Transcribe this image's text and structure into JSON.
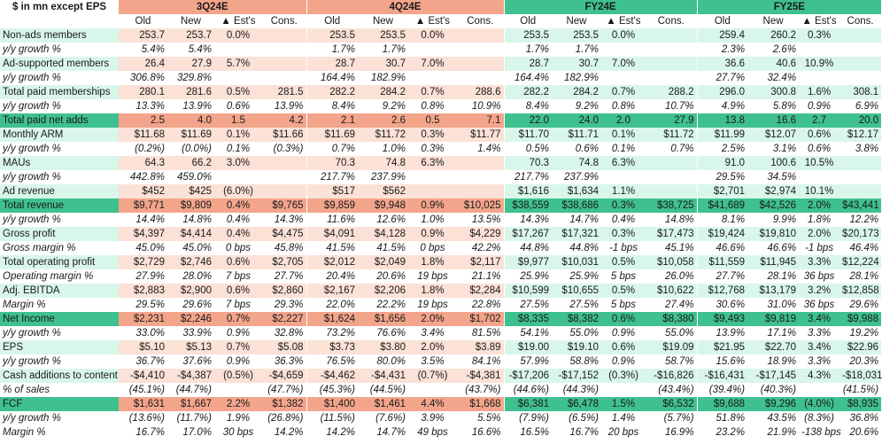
{
  "header": {
    "label": "$ in mn except EPS",
    "groups": [
      "3Q24E",
      "4Q24E",
      "FY24E",
      "FY25E"
    ],
    "subheaders": [
      "Old",
      "New",
      "▲ Est's",
      "Cons."
    ]
  },
  "rows": [
    {
      "label": "Non-ads members",
      "style": "light",
      "italic": false,
      "cells": [
        "253.7",
        "253.7",
        "0.0%",
        "",
        "253.5",
        "253.5",
        "0.0%",
        "",
        "253.5",
        "253.5",
        "0.0%",
        "",
        "259.4",
        "260.2",
        "0.3%",
        ""
      ]
    },
    {
      "label": "y/y growth %",
      "style": "white",
      "italic": true,
      "cells": [
        "5.4%",
        "5.4%",
        "",
        "",
        "1.7%",
        "1.7%",
        "",
        "",
        "1.7%",
        "1.7%",
        "",
        "",
        "2.3%",
        "2.6%",
        "",
        ""
      ]
    },
    {
      "label": "Ad-supported members",
      "style": "light",
      "italic": false,
      "cells": [
        "26.4",
        "27.9",
        "5.7%",
        "",
        "28.7",
        "30.7",
        "7.0%",
        "",
        "28.7",
        "30.7",
        "7.0%",
        "",
        "36.6",
        "40.6",
        "10.9%",
        ""
      ]
    },
    {
      "label": "y/y growth %",
      "style": "white",
      "italic": true,
      "cells": [
        "306.8%",
        "329.8%",
        "",
        "",
        "164.4%",
        "182.9%",
        "",
        "",
        "164.4%",
        "182.9%",
        "",
        "",
        "27.7%",
        "32.4%",
        "",
        ""
      ]
    },
    {
      "label": "Total paid memberships",
      "style": "light",
      "italic": false,
      "cells": [
        "280.1",
        "281.6",
        "0.5%",
        "281.5",
        "282.2",
        "284.2",
        "0.7%",
        "288.6",
        "282.2",
        "284.2",
        "0.7%",
        "288.2",
        "296.0",
        "300.8",
        "1.6%",
        "308.1"
      ]
    },
    {
      "label": "y/y growth %",
      "style": "white",
      "italic": true,
      "cells": [
        "13.3%",
        "13.9%",
        "0.6%",
        "13.9%",
        "8.4%",
        "9.2%",
        "0.8%",
        "10.9%",
        "8.4%",
        "9.2%",
        "0.8%",
        "10.7%",
        "4.9%",
        "5.8%",
        "0.9%",
        "6.9%"
      ]
    },
    {
      "label": "Total paid net adds",
      "style": "dark",
      "italic": false,
      "cells": [
        "2.5",
        "4.0",
        "1.5",
        "4.2",
        "2.1",
        "2.6",
        "0.5",
        "7.1",
        "22.0",
        "24.0",
        "2.0",
        "27.9",
        "13.8",
        "16.6",
        "2.7",
        "20.0"
      ]
    },
    {
      "label": "Monthly ARM",
      "style": "light",
      "italic": false,
      "cells": [
        "$11.68",
        "$11.69",
        "0.1%",
        "$11.66",
        "$11.69",
        "$11.72",
        "0.3%",
        "$11.77",
        "$11.70",
        "$11.71",
        "0.1%",
        "$11.72",
        "$11.99",
        "$12.07",
        "0.6%",
        "$12.17"
      ]
    },
    {
      "label": "y/y growth %",
      "style": "white",
      "italic": true,
      "cells": [
        "(0.2%)",
        "(0.0%)",
        "0.1%",
        "(0.3%)",
        "0.7%",
        "1.0%",
        "0.3%",
        "1.4%",
        "0.5%",
        "0.6%",
        "0.1%",
        "0.7%",
        "2.5%",
        "3.1%",
        "0.6%",
        "3.8%"
      ]
    },
    {
      "label": "MAUs",
      "style": "light",
      "italic": false,
      "cells": [
        "64.3",
        "66.2",
        "3.0%",
        "",
        "70.3",
        "74.8",
        "6.3%",
        "",
        "70.3",
        "74.8",
        "6.3%",
        "",
        "91.0",
        "100.6",
        "10.5%",
        ""
      ]
    },
    {
      "label": "y/y growth %",
      "style": "white",
      "italic": true,
      "cells": [
        "442.8%",
        "459.0%",
        "",
        "",
        "217.7%",
        "237.9%",
        "",
        "",
        "217.7%",
        "237.9%",
        "",
        "",
        "29.5%",
        "34.5%",
        "",
        ""
      ]
    },
    {
      "label": "Ad revenue",
      "style": "light",
      "italic": false,
      "cells": [
        "$452",
        "$425",
        "(6.0%)",
        "",
        "$517",
        "$562",
        "",
        "",
        "$1,616",
        "$1,634",
        "1.1%",
        "",
        "$2,701",
        "$2,974",
        "10.1%",
        ""
      ]
    },
    {
      "label": "Total revenue",
      "style": "dark",
      "italic": false,
      "cells": [
        "$9,771",
        "$9,809",
        "0.4%",
        "$9,765",
        "$9,859",
        "$9,948",
        "0.9%",
        "$10,025",
        "$38,559",
        "$38,686",
        "0.3%",
        "$38,725",
        "$41,689",
        "$42,526",
        "2.0%",
        "$43,441"
      ]
    },
    {
      "label": "y/y growth %",
      "style": "white",
      "italic": true,
      "cells": [
        "14.4%",
        "14.8%",
        "0.4%",
        "14.3%",
        "11.6%",
        "12.6%",
        "1.0%",
        "13.5%",
        "14.3%",
        "14.7%",
        "0.4%",
        "14.8%",
        "8.1%",
        "9.9%",
        "1.8%",
        "12.2%"
      ]
    },
    {
      "label": "Gross profit",
      "style": "light",
      "italic": false,
      "cells": [
        "$4,397",
        "$4,414",
        "0.4%",
        "$4,475",
        "$4,091",
        "$4,128",
        "0.9%",
        "$4,229",
        "$17,267",
        "$17,321",
        "0.3%",
        "$17,473",
        "$19,424",
        "$19,810",
        "2.0%",
        "$20,173"
      ]
    },
    {
      "label": "Gross margin %",
      "style": "white",
      "italic": true,
      "cells": [
        "45.0%",
        "45.0%",
        "0 bps",
        "45.8%",
        "41.5%",
        "41.5%",
        "0 bps",
        "42.2%",
        "44.8%",
        "44.8%",
        "-1 bps",
        "45.1%",
        "46.6%",
        "46.6%",
        "-1 bps",
        "46.4%"
      ]
    },
    {
      "label": "Total operating profit",
      "style": "light",
      "italic": false,
      "cells": [
        "$2,729",
        "$2,746",
        "0.6%",
        "$2,705",
        "$2,012",
        "$2,049",
        "1.8%",
        "$2,117",
        "$9,977",
        "$10,031",
        "0.5%",
        "$10,058",
        "$11,559",
        "$11,945",
        "3.3%",
        "$12,224"
      ]
    },
    {
      "label": "Operating margin %",
      "style": "white",
      "italic": true,
      "cells": [
        "27.9%",
        "28.0%",
        "7 bps",
        "27.7%",
        "20.4%",
        "20.6%",
        "19 bps",
        "21.1%",
        "25.9%",
        "25.9%",
        "5 bps",
        "26.0%",
        "27.7%",
        "28.1%",
        "36 bps",
        "28.1%"
      ]
    },
    {
      "label": "Adj. EBITDA",
      "style": "light",
      "italic": false,
      "cells": [
        "$2,883",
        "$2,900",
        "0.6%",
        "$2,860",
        "$2,167",
        "$2,206",
        "1.8%",
        "$2,284",
        "$10,599",
        "$10,655",
        "0.5%",
        "$10,622",
        "$12,768",
        "$13,179",
        "3.2%",
        "$12,858"
      ]
    },
    {
      "label": "Margin %",
      "style": "white",
      "italic": true,
      "cells": [
        "29.5%",
        "29.6%",
        "7 bps",
        "29.3%",
        "22.0%",
        "22.2%",
        "19 bps",
        "22.8%",
        "27.5%",
        "27.5%",
        "5 bps",
        "27.4%",
        "30.6%",
        "31.0%",
        "36 bps",
        "29.6%"
      ]
    },
    {
      "label": "Net Income",
      "style": "dark",
      "italic": false,
      "cells": [
        "$2,231",
        "$2,246",
        "0.7%",
        "$2,227",
        "$1,624",
        "$1,656",
        "2.0%",
        "$1,702",
        "$8,335",
        "$8,382",
        "0.6%",
        "$8,380",
        "$9,493",
        "$9,819",
        "3.4%",
        "$9,988"
      ]
    },
    {
      "label": "y/y growth %",
      "style": "white",
      "italic": true,
      "cells": [
        "33.0%",
        "33.9%",
        "0.9%",
        "32.8%",
        "73.2%",
        "76.6%",
        "3.4%",
        "81.5%",
        "54.1%",
        "55.0%",
        "0.9%",
        "55.0%",
        "13.9%",
        "17.1%",
        "3.3%",
        "19.2%"
      ]
    },
    {
      "label": "EPS",
      "style": "light",
      "italic": false,
      "cells": [
        "$5.10",
        "$5.13",
        "0.7%",
        "$5.08",
        "$3.73",
        "$3.80",
        "2.0%",
        "$3.89",
        "$19.00",
        "$19.10",
        "0.6%",
        "$19.09",
        "$21.95",
        "$22.70",
        "3.4%",
        "$22.96"
      ]
    },
    {
      "label": "y/y growth %",
      "style": "white",
      "italic": true,
      "cells": [
        "36.7%",
        "37.6%",
        "0.9%",
        "36.3%",
        "76.5%",
        "80.0%",
        "3.5%",
        "84.1%",
        "57.9%",
        "58.8%",
        "0.9%",
        "58.7%",
        "15.6%",
        "18.9%",
        "3.3%",
        "20.3%"
      ]
    },
    {
      "label": "Cash additions to content",
      "style": "light",
      "italic": false,
      "cells": [
        "-$4,410",
        "-$4,387",
        "(0.5%)",
        "-$4,659",
        "-$4,462",
        "-$4,431",
        "(0.7%)",
        "-$4,381",
        "-$17,206",
        "-$17,152",
        "(0.3%)",
        "-$16,826",
        "-$16,431",
        "-$17,145",
        "4.3%",
        "-$18,031"
      ]
    },
    {
      "label": "% of sales",
      "style": "white",
      "italic": true,
      "cells": [
        "(45.1%)",
        "(44.7%)",
        "",
        "(47.7%)",
        "(45.3%)",
        "(44.5%)",
        "",
        "(43.7%)",
        "(44.6%)",
        "(44.3%)",
        "",
        "(43.4%)",
        "(39.4%)",
        "(40.3%)",
        "",
        "(41.5%)"
      ]
    },
    {
      "label": "FCF",
      "style": "dark",
      "italic": false,
      "cells": [
        "$1,631",
        "$1,667",
        "2.2%",
        "$1,382",
        "$1,400",
        "$1,461",
        "4.4%",
        "$1,668",
        "$6,381",
        "$6,478",
        "1.5%",
        "$6,532",
        "$9,688",
        "$9,296",
        "(4.0%)",
        "$8,935"
      ]
    },
    {
      "label": "y/y growth %",
      "style": "white",
      "italic": true,
      "cells": [
        "(13.6%)",
        "(11.7%)",
        "1.9%",
        "(26.8%)",
        "(11.5%)",
        "(7.6%)",
        "3.9%",
        "5.5%",
        "(7.9%)",
        "(6.5%)",
        "1.4%",
        "(5.7%)",
        "51.8%",
        "43.5%",
        "(8.3%)",
        "36.8%"
      ]
    },
    {
      "label": "Margin %",
      "style": "white",
      "italic": true,
      "cells": [
        "16.7%",
        "17.0%",
        "30 bps",
        "14.2%",
        "14.2%",
        "14.7%",
        "49 bps",
        "16.6%",
        "16.5%",
        "16.7%",
        "20 bps",
        "16.9%",
        "23.2%",
        "21.9%",
        "-138 bps",
        "20.6%"
      ]
    }
  ]
}
